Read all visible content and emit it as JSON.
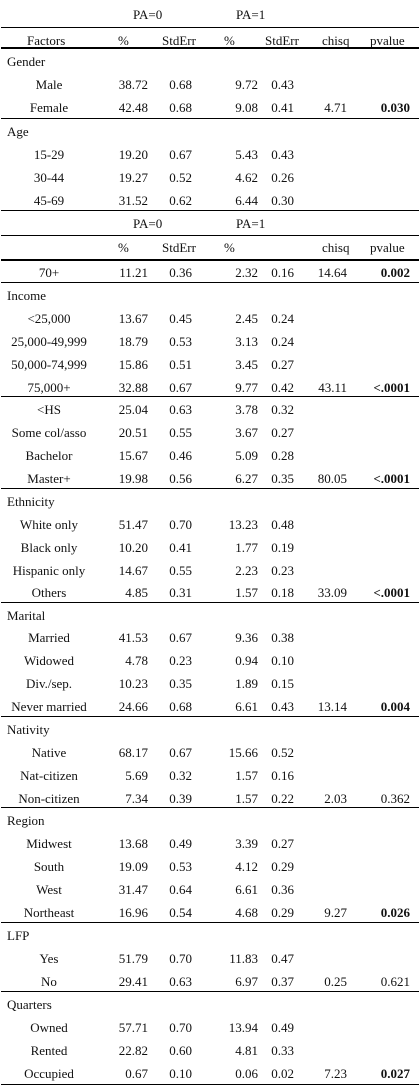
{
  "header1": {
    "pa0": "PA=0",
    "pa1": "PA=1"
  },
  "header2": {
    "factors": "Factors",
    "pct0": "%",
    "se0": "StdErr",
    "pct1": "%",
    "se1": "StdErr",
    "chisq": "chisq",
    "pvalue": "pvalue"
  },
  "header3": {
    "pa0": "PA=0",
    "pa1": "PA=1"
  },
  "header4": {
    "pct0": "%",
    "se0": "StdErr",
    "pct1": "%",
    "chisq": "chisq",
    "pvalue": "pvalue"
  },
  "rows": [
    {
      "label": "Gender",
      "cells": []
    },
    {
      "label": "Male",
      "cells": [
        "38.72",
        "0.68",
        "9.72",
        "0.43",
        "",
        ""
      ]
    },
    {
      "label": "Female",
      "cells": [
        "42.48",
        "0.68",
        "9.08",
        "0.41",
        "4.71",
        "0.030"
      ],
      "bold_p": true
    },
    {
      "label": "Age",
      "cells": []
    },
    {
      "label": "15-29",
      "cells": [
        "19.20",
        "0.67",
        "5.43",
        "0.43",
        "",
        ""
      ]
    },
    {
      "label": "30-44",
      "cells": [
        "19.27",
        "0.52",
        "4.62",
        "0.26",
        "",
        ""
      ]
    },
    {
      "label": "45-69",
      "cells": [
        "31.52",
        "0.62",
        "6.44",
        "0.30",
        "",
        ""
      ]
    },
    {
      "label": "70+",
      "cells": [
        "11.21",
        "0.36",
        "2.32",
        "0.16",
        "14.64",
        "0.002"
      ],
      "bold_p": true
    },
    {
      "label": "Income",
      "cells": []
    },
    {
      "label": "<25,000",
      "cells": [
        "13.67",
        "0.45",
        "2.45",
        "0.24",
        "",
        ""
      ]
    },
    {
      "label": "25,000-49,999",
      "cells": [
        "18.79",
        "0.53",
        "3.13",
        "0.24",
        "",
        ""
      ]
    },
    {
      "label": "50,000-74,999",
      "cells": [
        "15.86",
        "0.51",
        "3.45",
        "0.27",
        "",
        ""
      ]
    },
    {
      "label": "75,000+",
      "cells": [
        "32.88",
        "0.67",
        "9.77",
        "0.42",
        "43.11",
        "<.0001"
      ],
      "bold_p": true
    },
    {
      "label": "<HS",
      "cells": [
        "25.04",
        "0.63",
        "3.78",
        "0.32",
        "",
        ""
      ]
    },
    {
      "label": "Some col/asso",
      "cells": [
        "20.51",
        "0.55",
        "3.67",
        "0.27",
        "",
        ""
      ]
    },
    {
      "label": "Bachelor",
      "cells": [
        "15.67",
        "0.46",
        "5.09",
        "0.28",
        "",
        ""
      ]
    },
    {
      "label": "Master+",
      "cells": [
        "19.98",
        "0.56",
        "6.27",
        "0.35",
        "80.05",
        "<.0001"
      ],
      "bold_p": true
    },
    {
      "label": "Ethnicity",
      "cells": []
    },
    {
      "label": "White only",
      "cells": [
        "51.47",
        "0.70",
        "13.23",
        "0.48",
        "",
        ""
      ]
    },
    {
      "label": "Black only",
      "cells": [
        "10.20",
        "0.41",
        "1.77",
        "0.19",
        "",
        ""
      ]
    },
    {
      "label": "Hispanic only",
      "cells": [
        "14.67",
        "0.55",
        "2.23",
        "0.23",
        "",
        ""
      ]
    },
    {
      "label": "Others",
      "cells": [
        "4.85",
        "0.31",
        "1.57",
        "0.18",
        "33.09",
        "<.0001"
      ],
      "bold_p": true
    },
    {
      "label": "Marital",
      "cells": []
    },
    {
      "label": "Married",
      "cells": [
        "41.53",
        "0.67",
        "9.36",
        "0.38",
        "",
        ""
      ]
    },
    {
      "label": "Widowed",
      "cells": [
        "4.78",
        "0.23",
        "0.94",
        "0.10",
        "",
        ""
      ]
    },
    {
      "label": "Div./sep.",
      "cells": [
        "10.23",
        "0.35",
        "1.89",
        "0.15",
        "",
        ""
      ]
    },
    {
      "label": "Never married",
      "cells": [
        "24.66",
        "0.68",
        "6.61",
        "0.43",
        "13.14",
        "0.004"
      ],
      "bold_p": true
    },
    {
      "label": "Nativity",
      "cells": []
    },
    {
      "label": "Native",
      "cells": [
        "68.17",
        "0.67",
        "15.66",
        "0.52",
        "",
        ""
      ]
    },
    {
      "label": "Nat-citizen",
      "cells": [
        "5.69",
        "0.32",
        "1.57",
        "0.16",
        "",
        ""
      ]
    },
    {
      "label": "Non-citizen",
      "cells": [
        "7.34",
        "0.39",
        "1.57",
        "0.22",
        "2.03",
        "0.362"
      ]
    },
    {
      "label": "Region",
      "cells": []
    },
    {
      "label": "Midwest",
      "cells": [
        "13.68",
        "0.49",
        "3.39",
        "0.27",
        "",
        ""
      ]
    },
    {
      "label": "South",
      "cells": [
        "19.09",
        "0.53",
        "4.12",
        "0.29",
        "",
        ""
      ]
    },
    {
      "label": "West",
      "cells": [
        "31.47",
        "0.64",
        "6.61",
        "0.36",
        "",
        ""
      ]
    },
    {
      "label": "Northeast",
      "cells": [
        "16.96",
        "0.54",
        "4.68",
        "0.29",
        "9.27",
        "0.026"
      ],
      "bold_p": true
    },
    {
      "label": "LFP",
      "cells": []
    },
    {
      "label": "Yes",
      "cells": [
        "51.79",
        "0.70",
        "11.83",
        "0.47",
        "",
        ""
      ]
    },
    {
      "label": "No",
      "cells": [
        "29.41",
        "0.63",
        "6.97",
        "0.37",
        "0.25",
        "0.621"
      ]
    },
    {
      "label": "Quarters",
      "cells": []
    },
    {
      "label": "Owned",
      "cells": [
        "57.71",
        "0.70",
        "13.94",
        "0.49",
        "",
        ""
      ]
    },
    {
      "label": "Rented",
      "cells": [
        "22.82",
        "0.60",
        "4.81",
        "0.33",
        "",
        ""
      ]
    },
    {
      "label": "Occupied",
      "cells": [
        "0.67",
        "0.10",
        "0.06",
        "0.02",
        "7.23",
        "0.027"
      ],
      "bold_p": true
    }
  ]
}
